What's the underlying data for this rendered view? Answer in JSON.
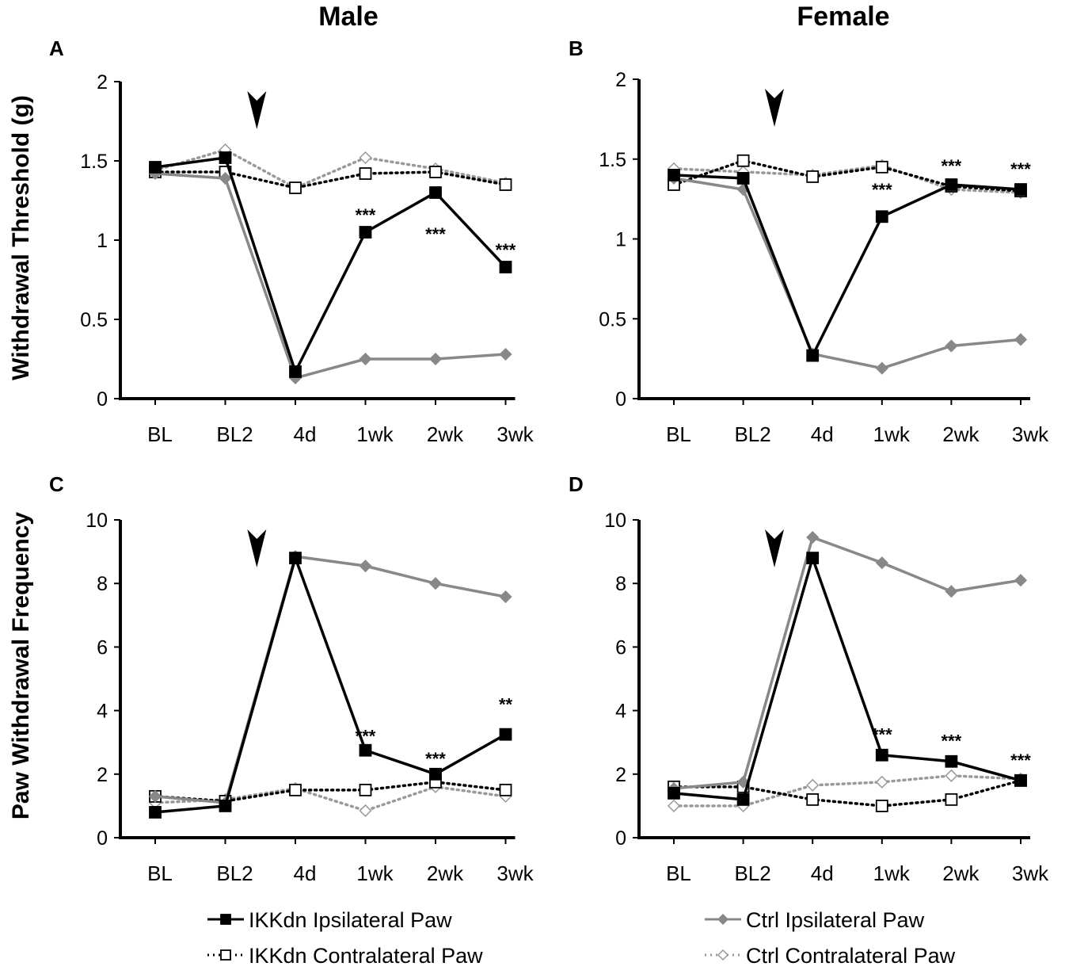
{
  "column_titles": [
    "Male",
    "Female"
  ],
  "y_labels": [
    "Withdrawal Threshold (g)",
    "Paw Withdrawal Frequency"
  ],
  "colors": {
    "ikk": "#000000",
    "ctrl": "#888888",
    "ctrl_contra": "#999999"
  },
  "legend": [
    {
      "label": "IKKdn Ipsilateral Paw",
      "series": "ikk_ipsi"
    },
    {
      "label": "IKKdn Contralateral Paw",
      "series": "ikk_contra"
    },
    {
      "label": "Ctrl Ipsilateral Paw",
      "series": "ctrl_ipsi"
    },
    {
      "label": "Ctrl Contralateral Paw",
      "series": "ctrl_contra"
    }
  ],
  "chart_data": [
    {
      "panel": "A",
      "type": "line",
      "title": "Male",
      "ylabel": "Withdrawal Threshold (g)",
      "categories": [
        "BL",
        "BL2",
        "4d",
        "1wk",
        "2wk",
        "3wk"
      ],
      "ylim": [
        0,
        2
      ],
      "yticks": [
        "0",
        "0.5",
        "1",
        "1.5",
        "2"
      ],
      "ytick_values": [
        0,
        0.5,
        1,
        1.5,
        2
      ],
      "arrow_after": "BL2",
      "series": [
        {
          "name": "IKKdn Ipsilateral Paw",
          "key": "ikk_ipsi",
          "values": [
            1.46,
            1.52,
            0.17,
            1.05,
            1.3,
            0.83
          ]
        },
        {
          "name": "IKKdn Contralateral Paw",
          "key": "ikk_contra",
          "values": [
            1.43,
            1.43,
            1.33,
            1.42,
            1.43,
            1.35
          ]
        },
        {
          "name": "Ctrl Ipsilateral Paw",
          "key": "ctrl_ipsi",
          "values": [
            1.42,
            1.39,
            0.13,
            0.25,
            0.25,
            0.28
          ]
        },
        {
          "name": "Ctrl Contralateral Paw",
          "key": "ctrl_contra",
          "values": [
            1.44,
            1.57,
            1.33,
            1.52,
            1.45,
            1.36
          ]
        }
      ],
      "annotations": [
        {
          "category": "1wk",
          "text": "***",
          "y": 1.12
        },
        {
          "category": "2wk",
          "text": "***",
          "y": 1.0
        },
        {
          "category": "3wk",
          "text": "***",
          "y": 0.9
        }
      ]
    },
    {
      "panel": "B",
      "type": "line",
      "title": "Female",
      "ylabel": "Withdrawal Threshold (g)",
      "categories": [
        "BL",
        "BL2",
        "4d",
        "1wk",
        "2wk",
        "3wk"
      ],
      "ylim": [
        0,
        2
      ],
      "yticks": [
        "0",
        "0.5",
        "1",
        "1.5",
        "2"
      ],
      "ytick_values": [
        0,
        0.5,
        1,
        1.5,
        2
      ],
      "arrow_after": "BL2",
      "series": [
        {
          "name": "IKKdn Ipsilateral Paw",
          "key": "ikk_ipsi",
          "values": [
            1.4,
            1.38,
            0.27,
            1.14,
            1.34,
            1.31
          ]
        },
        {
          "name": "IKKdn Contralateral Paw",
          "key": "ikk_contra",
          "values": [
            1.34,
            1.49,
            1.39,
            1.45,
            1.33,
            1.3
          ]
        },
        {
          "name": "Ctrl Ipsilateral Paw",
          "key": "ctrl_ipsi",
          "values": [
            1.38,
            1.31,
            0.28,
            0.19,
            0.33,
            0.37
          ]
        },
        {
          "name": "Ctrl Contralateral Paw",
          "key": "ctrl_contra",
          "values": [
            1.44,
            1.42,
            1.4,
            1.46,
            1.31,
            1.29
          ]
        }
      ],
      "annotations": [
        {
          "category": "1wk",
          "text": "***",
          "y": 1.27
        },
        {
          "category": "2wk",
          "text": "***",
          "y": 1.42
        },
        {
          "category": "3wk",
          "text": "***",
          "y": 1.4
        }
      ]
    },
    {
      "panel": "C",
      "type": "line",
      "title": "Male",
      "ylabel": "Paw Withdrawal Frequency",
      "categories": [
        "BL",
        "BL2",
        "4d",
        "1wk",
        "2wk",
        "3wk"
      ],
      "ylim": [
        0,
        10
      ],
      "yticks": [
        "0",
        "2",
        "4",
        "6",
        "8",
        "10"
      ],
      "ytick_values": [
        0,
        2,
        4,
        6,
        8,
        10
      ],
      "arrow_after": "BL2",
      "series": [
        {
          "name": "IKKdn Ipsilateral Paw",
          "key": "ikk_ipsi",
          "values": [
            0.8,
            1.0,
            8.8,
            2.75,
            2.0,
            3.25
          ]
        },
        {
          "name": "IKKdn Contralateral Paw",
          "key": "ikk_contra",
          "values": [
            1.3,
            1.15,
            1.5,
            1.5,
            1.75,
            1.5
          ]
        },
        {
          "name": "Ctrl Ipsilateral Paw",
          "key": "ctrl_ipsi",
          "values": [
            1.3,
            1.1,
            8.85,
            8.55,
            8.0,
            7.58
          ]
        },
        {
          "name": "Ctrl Contralateral Paw",
          "key": "ctrl_contra",
          "values": [
            1.1,
            1.2,
            1.55,
            0.85,
            1.6,
            1.3
          ]
        }
      ],
      "annotations": [
        {
          "category": "1wk",
          "text": "***",
          "y": 3.0
        },
        {
          "category": "2wk",
          "text": "***",
          "y": 2.3
        },
        {
          "category": "3wk",
          "text": "**",
          "y": 4.0
        }
      ]
    },
    {
      "panel": "D",
      "type": "line",
      "title": "Female",
      "ylabel": "Paw Withdrawal Frequency",
      "categories": [
        "BL",
        "BL2",
        "4d",
        "1wk",
        "2wk",
        "3wk"
      ],
      "ylim": [
        0,
        10
      ],
      "yticks": [
        "0",
        "2",
        "4",
        "6",
        "8",
        "10"
      ],
      "ytick_values": [
        0,
        2,
        4,
        6,
        8,
        10
      ],
      "arrow_after": "BL2",
      "series": [
        {
          "name": "IKKdn Ipsilateral Paw",
          "key": "ikk_ipsi",
          "values": [
            1.4,
            1.2,
            8.8,
            2.6,
            2.4,
            1.8
          ]
        },
        {
          "name": "IKKdn Contralateral Paw",
          "key": "ikk_contra",
          "values": [
            1.6,
            1.6,
            1.2,
            1.0,
            1.2,
            1.8
          ]
        },
        {
          "name": "Ctrl Ipsilateral Paw",
          "key": "ctrl_ipsi",
          "values": [
            1.55,
            1.75,
            9.45,
            8.65,
            7.75,
            8.1
          ]
        },
        {
          "name": "Ctrl Contralateral Paw",
          "key": "ctrl_contra",
          "values": [
            1.0,
            1.0,
            1.65,
            1.75,
            1.95,
            1.85
          ]
        }
      ],
      "annotations": [
        {
          "category": "1wk",
          "text": "***",
          "y": 3.05
        },
        {
          "category": "2wk",
          "text": "***",
          "y": 2.85
        },
        {
          "category": "3wk",
          "text": "***",
          "y": 2.25
        }
      ]
    }
  ]
}
